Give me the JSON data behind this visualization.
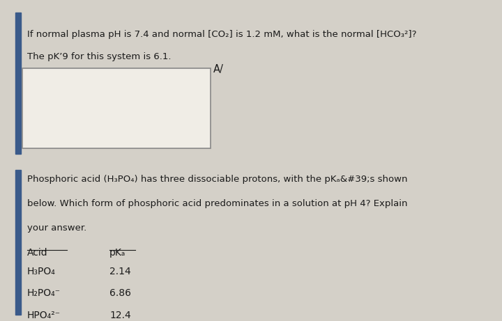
{
  "bg_color": "#d4d0c8",
  "panel1_bg": "#e8e4dc",
  "panel2_bg": "#e8e4dc",
  "col1_header": "Acid",
  "col2_header": "pKₐ",
  "row1_acid": "H₃PO₄",
  "row1_pka": "2.14",
  "row2_acid": "H₂PO₄⁻",
  "row2_pka": "6.86",
  "row3_acid": "HPO₄²⁻",
  "row3_pka": "12.4",
  "text_color": "#1a1a1a",
  "accent_color": "#3a5a8a",
  "font_size_body": 9.5,
  "font_size_table": 10
}
